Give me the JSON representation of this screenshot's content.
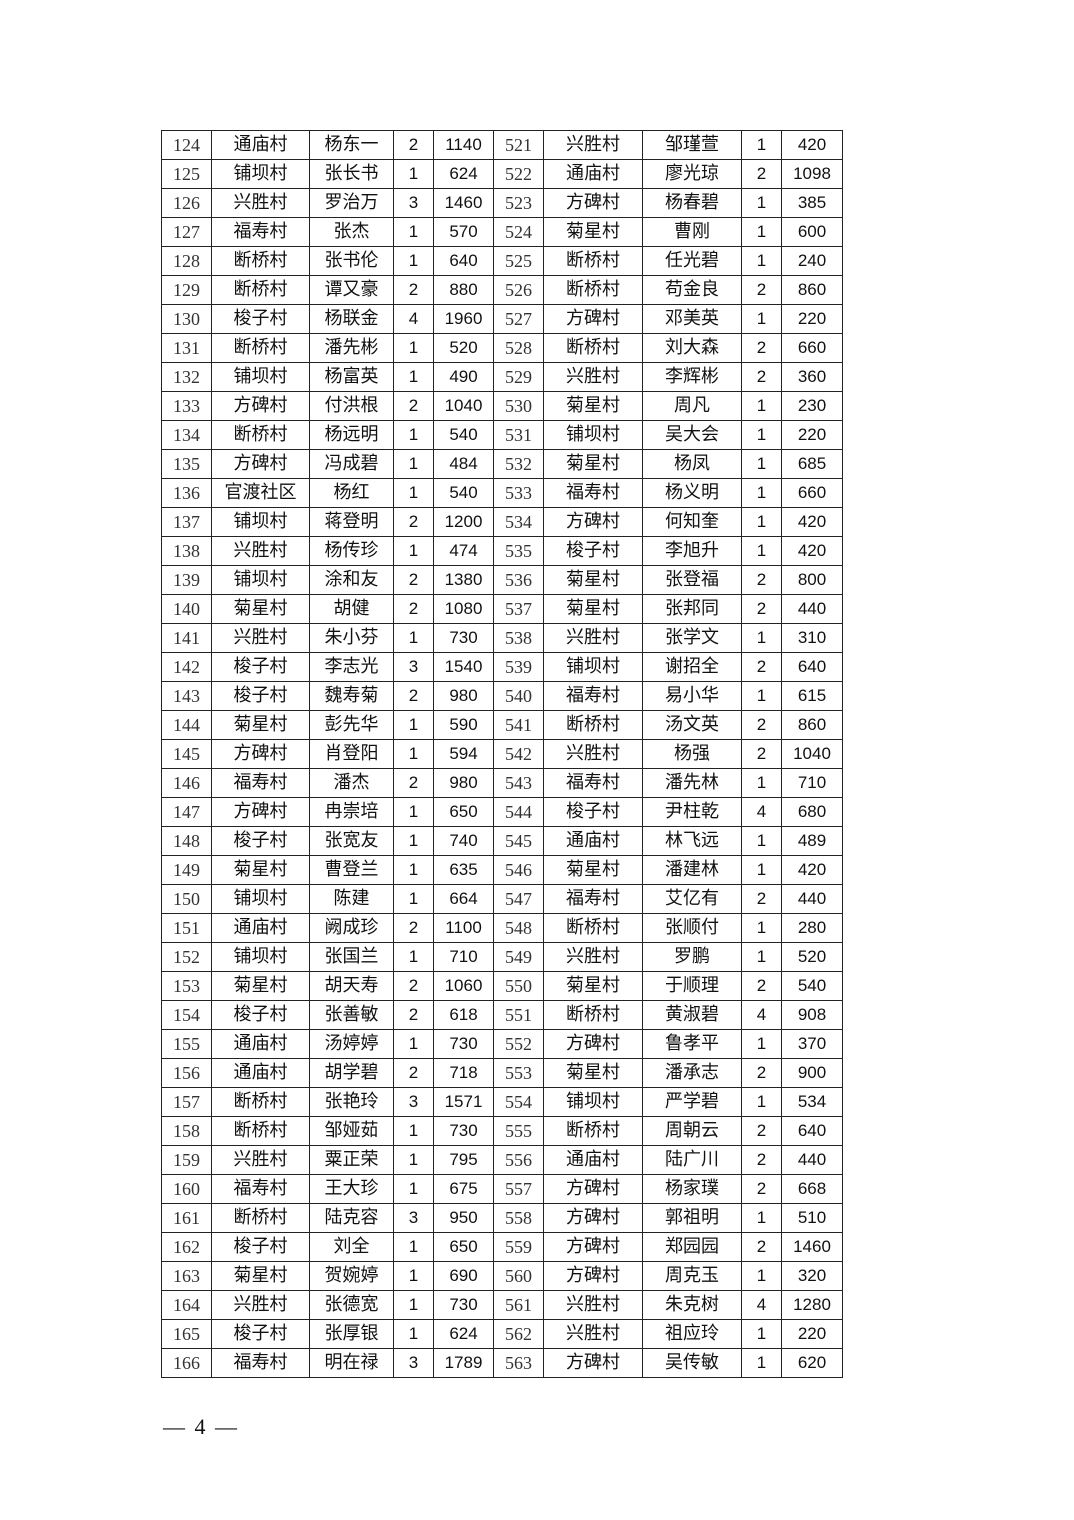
{
  "table": {
    "rows": [
      [
        "124",
        "通庙村",
        "杨东一",
        "2",
        "1140",
        "521",
        "兴胜村",
        "邹瑾萱",
        "1",
        "420"
      ],
      [
        "125",
        "铺坝村",
        "张长书",
        "1",
        "624",
        "522",
        "通庙村",
        "廖光琼",
        "2",
        "1098"
      ],
      [
        "126",
        "兴胜村",
        "罗治万",
        "3",
        "1460",
        "523",
        "方碑村",
        "杨春碧",
        "1",
        "385"
      ],
      [
        "127",
        "福寿村",
        "张杰",
        "1",
        "570",
        "524",
        "菊星村",
        "曹刚",
        "1",
        "600"
      ],
      [
        "128",
        "断桥村",
        "张书伦",
        "1",
        "640",
        "525",
        "断桥村",
        "任光碧",
        "1",
        "240"
      ],
      [
        "129",
        "断桥村",
        "谭又豪",
        "2",
        "880",
        "526",
        "断桥村",
        "苟金良",
        "2",
        "860"
      ],
      [
        "130",
        "梭子村",
        "杨联金",
        "4",
        "1960",
        "527",
        "方碑村",
        "邓美英",
        "1",
        "220"
      ],
      [
        "131",
        "断桥村",
        "潘先彬",
        "1",
        "520",
        "528",
        "断桥村",
        "刘大森",
        "2",
        "660"
      ],
      [
        "132",
        "铺坝村",
        "杨富英",
        "1",
        "490",
        "529",
        "兴胜村",
        "李辉彬",
        "2",
        "360"
      ],
      [
        "133",
        "方碑村",
        "付洪根",
        "2",
        "1040",
        "530",
        "菊星村",
        "周凡",
        "1",
        "230"
      ],
      [
        "134",
        "断桥村",
        "杨远明",
        "1",
        "540",
        "531",
        "铺坝村",
        "吴大会",
        "1",
        "220"
      ],
      [
        "135",
        "方碑村",
        "冯成碧",
        "1",
        "484",
        "532",
        "菊星村",
        "杨凤",
        "1",
        "685"
      ],
      [
        "136",
        "官渡社区",
        "杨红",
        "1",
        "540",
        "533",
        "福寿村",
        "杨义明",
        "1",
        "660"
      ],
      [
        "137",
        "铺坝村",
        "蒋登明",
        "2",
        "1200",
        "534",
        "方碑村",
        "何知奎",
        "1",
        "420"
      ],
      [
        "138",
        "兴胜村",
        "杨传珍",
        "1",
        "474",
        "535",
        "梭子村",
        "李旭升",
        "1",
        "420"
      ],
      [
        "139",
        "铺坝村",
        "涂和友",
        "2",
        "1380",
        "536",
        "菊星村",
        "张登福",
        "2",
        "800"
      ],
      [
        "140",
        "菊星村",
        "胡健",
        "2",
        "1080",
        "537",
        "菊星村",
        "张邦同",
        "2",
        "440"
      ],
      [
        "141",
        "兴胜村",
        "朱小芬",
        "1",
        "730",
        "538",
        "兴胜村",
        "张学文",
        "1",
        "310"
      ],
      [
        "142",
        "梭子村",
        "李志光",
        "3",
        "1540",
        "539",
        "铺坝村",
        "谢招全",
        "2",
        "640"
      ],
      [
        "143",
        "梭子村",
        "魏寿菊",
        "2",
        "980",
        "540",
        "福寿村",
        "易小华",
        "1",
        "615"
      ],
      [
        "144",
        "菊星村",
        "彭先华",
        "1",
        "590",
        "541",
        "断桥村",
        "汤文英",
        "2",
        "860"
      ],
      [
        "145",
        "方碑村",
        "肖登阳",
        "1",
        "594",
        "542",
        "兴胜村",
        "杨强",
        "2",
        "1040"
      ],
      [
        "146",
        "福寿村",
        "潘杰",
        "2",
        "980",
        "543",
        "福寿村",
        "潘先林",
        "1",
        "710"
      ],
      [
        "147",
        "方碑村",
        "冉崇培",
        "1",
        "650",
        "544",
        "梭子村",
        "尹柱乾",
        "4",
        "680"
      ],
      [
        "148",
        "梭子村",
        "张宽友",
        "1",
        "740",
        "545",
        "通庙村",
        "林飞远",
        "1",
        "489"
      ],
      [
        "149",
        "菊星村",
        "曹登兰",
        "1",
        "635",
        "546",
        "菊星村",
        "潘建林",
        "1",
        "420"
      ],
      [
        "150",
        "铺坝村",
        "陈建",
        "1",
        "664",
        "547",
        "福寿村",
        "艾亿有",
        "2",
        "440"
      ],
      [
        "151",
        "通庙村",
        "阙成珍",
        "2",
        "1100",
        "548",
        "断桥村",
        "张顺付",
        "1",
        "280"
      ],
      [
        "152",
        "铺坝村",
        "张国兰",
        "1",
        "710",
        "549",
        "兴胜村",
        "罗鹏",
        "1",
        "520"
      ],
      [
        "153",
        "菊星村",
        "胡天寿",
        "2",
        "1060",
        "550",
        "菊星村",
        "于顺理",
        "2",
        "540"
      ],
      [
        "154",
        "梭子村",
        "张善敏",
        "2",
        "618",
        "551",
        "断桥村",
        "黄淑碧",
        "4",
        "908"
      ],
      [
        "155",
        "通庙村",
        "汤婷婷",
        "1",
        "730",
        "552",
        "方碑村",
        "鲁孝平",
        "1",
        "370"
      ],
      [
        "156",
        "通庙村",
        "胡学碧",
        "2",
        "718",
        "553",
        "菊星村",
        "潘承志",
        "2",
        "900"
      ],
      [
        "157",
        "断桥村",
        "张艳玲",
        "3",
        "1571",
        "554",
        "铺坝村",
        "严学碧",
        "1",
        "534"
      ],
      [
        "158",
        "断桥村",
        "邹娅茹",
        "1",
        "730",
        "555",
        "断桥村",
        "周朝云",
        "2",
        "640"
      ],
      [
        "159",
        "兴胜村",
        "粟正荣",
        "1",
        "795",
        "556",
        "通庙村",
        "陆广川",
        "2",
        "440"
      ],
      [
        "160",
        "福寿村",
        "王大珍",
        "1",
        "675",
        "557",
        "方碑村",
        "杨家璞",
        "2",
        "668"
      ],
      [
        "161",
        "断桥村",
        "陆克容",
        "3",
        "950",
        "558",
        "方碑村",
        "郭祖明",
        "1",
        "510"
      ],
      [
        "162",
        "梭子村",
        "刘全",
        "1",
        "650",
        "559",
        "方碑村",
        "郑园园",
        "2",
        "1460"
      ],
      [
        "163",
        "菊星村",
        "贺婉婷",
        "1",
        "690",
        "560",
        "方碑村",
        "周克玉",
        "1",
        "320"
      ],
      [
        "164",
        "兴胜村",
        "张德宽",
        "1",
        "730",
        "561",
        "兴胜村",
        "朱克树",
        "4",
        "1280"
      ],
      [
        "165",
        "梭子村",
        "张厚银",
        "1",
        "624",
        "562",
        "兴胜村",
        "祖应玲",
        "1",
        "220"
      ],
      [
        "166",
        "福寿村",
        "明在禄",
        "3",
        "1789",
        "563",
        "方碑村",
        "吴传敏",
        "1",
        "620"
      ]
    ]
  },
  "footer": {
    "page_number": "— 4 —"
  }
}
